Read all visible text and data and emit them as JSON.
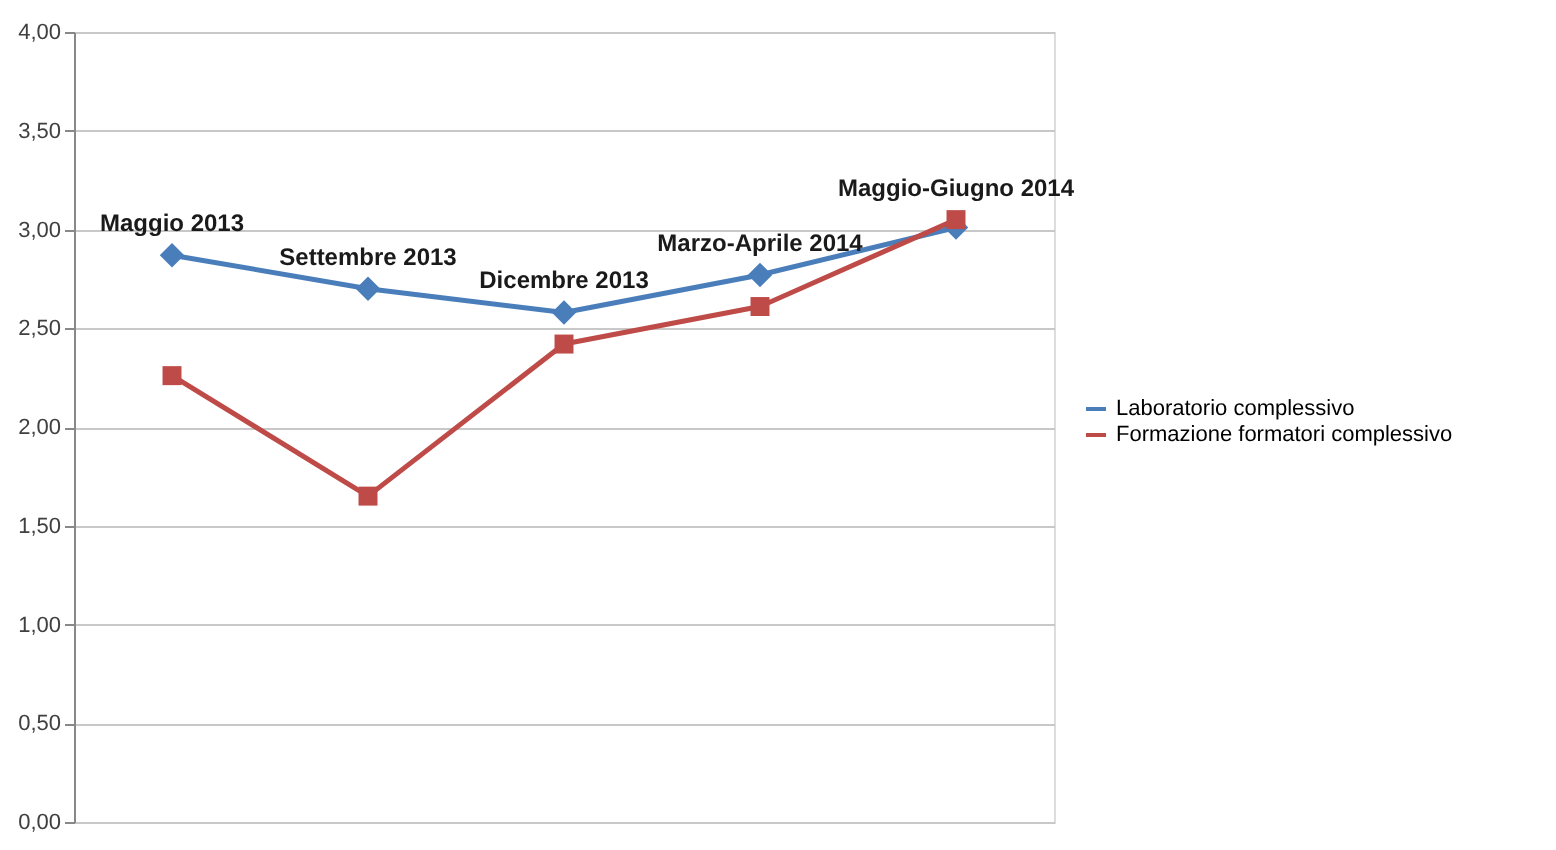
{
  "chart_data": {
    "type": "line",
    "categories": [
      "Maggio 2013",
      "Settembre 2013",
      "Dicembre 2013",
      "Marzo-Aprile 2014",
      "Maggio-Giugno 2014"
    ],
    "series": [
      {
        "name": "Laboratorio complessivo",
        "color": "#4a7ebb",
        "marker": "diamond",
        "values": [
          2.87,
          2.7,
          2.58,
          2.77,
          3.01
        ]
      },
      {
        "name": "Formazione formatori complessivo",
        "color": "#be4b48",
        "marker": "square",
        "values": [
          2.26,
          1.65,
          2.42,
          2.61,
          3.05
        ]
      }
    ],
    "ylim": [
      0,
      4
    ],
    "yticks": [
      {
        "value": 0,
        "label": "0,00"
      },
      {
        "value": 0.5,
        "label": "0,50"
      },
      {
        "value": 1,
        "label": "1,00"
      },
      {
        "value": 1.5,
        "label": "1,50"
      },
      {
        "value": 2,
        "label": "2,00"
      },
      {
        "value": 2.5,
        "label": "2,50"
      },
      {
        "value": 3,
        "label": "3,00"
      },
      {
        "value": 3.5,
        "label": "3,50"
      },
      {
        "value": 4,
        "label": "4,00"
      }
    ],
    "grid": "y",
    "legend": "right",
    "tick_labels": "y",
    "line_style": "solid"
  }
}
